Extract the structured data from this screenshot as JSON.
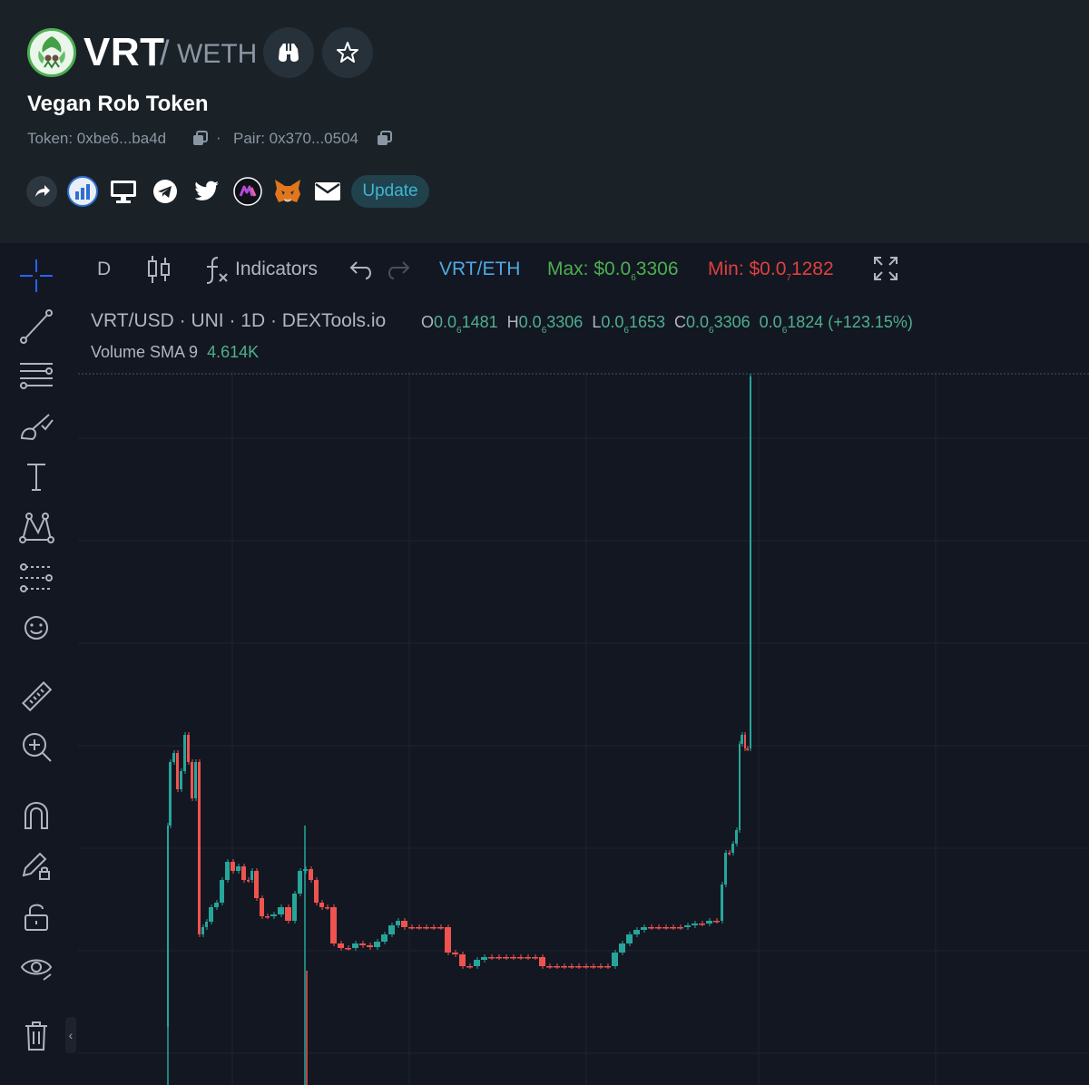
{
  "token": {
    "symbol": "VRT",
    "slash": "/",
    "quote": "WETH",
    "name": "Vegan Rob Token",
    "token_address": "Token: 0xbe6...ba4d",
    "separator": "·",
    "pair_address": "Pair: 0x370...0504",
    "update_label": "Update"
  },
  "header_icons": [
    "binoculars-icon",
    "star-icon"
  ],
  "social_icons": [
    "share-icon",
    "dextools-icon",
    "website-icon",
    "telegram-icon",
    "twitter-icon",
    "coinmarket-icon",
    "metamask-icon",
    "email-icon"
  ],
  "toolbar": {
    "interval": "D",
    "indicators": "Indicators",
    "pair": "VRT/ETH",
    "max_prefix": "Max: $0.0",
    "max_sub": "6",
    "max_rest": "3306",
    "min_prefix": "Min: $0.0",
    "min_sub": "7",
    "min_rest": "1282"
  },
  "legend": {
    "title": "VRT/USD · UNI · 1D · DEXTools.io",
    "o_label": "O",
    "o_pre": "0.0",
    "o_sub": "6",
    "o_rest": "1481",
    "h_label": "H",
    "h_pre": "0.0",
    "h_sub": "6",
    "h_rest": "3306",
    "l_label": "L",
    "l_pre": "0.0",
    "l_sub": "6",
    "l_rest": "1653",
    "c_label": "C",
    "c_pre": "0.0",
    "c_sub": "6",
    "c_rest": "3306",
    "chg_pre": "0.0",
    "chg_sub": "6",
    "chg_rest": "1824 (+123.15%)",
    "volume_label": "Volume SMA 9",
    "volume_value": "4.614K"
  },
  "colors": {
    "up": "#26a69a",
    "down": "#ef5350",
    "background": "#131722",
    "header": "#1a2127",
    "accent": "#2962ff"
  },
  "chart_data": {
    "type": "candlestick",
    "series": [
      {
        "name": "VRT/USD",
        "values": [
          [
            1.42,
            1.42,
            1.34,
            1.34
          ],
          [
            1.34,
            1.34,
            1.34,
            1.34
          ],
          [
            1.34,
            2.75,
            1.34,
            2.72
          ],
          [
            2.72,
            2.94,
            2.7,
            2.9
          ],
          [
            2.9,
            2.94,
            2.82,
            2.86
          ],
          [
            2.86,
            3.0,
            2.8,
            2.95
          ],
          [
            2.95,
            2.98,
            2.9,
            2.93
          ],
          [
            2.93,
            3.02,
            2.92,
            2.98
          ],
          [
            2.98,
            3.0,
            2.85,
            2.95
          ],
          [
            2.95,
            3.3,
            2.9,
            3.2
          ],
          [
            3.2,
            3.3,
            2.6,
            2.7
          ],
          [
            2.7,
            2.9,
            2.68,
            2.85
          ],
          [
            2.85,
            2.9,
            2.36,
            2.4
          ],
          [
            2.4,
            2.5,
            2.38,
            2.42
          ],
          [
            2.42,
            2.5,
            2.4,
            2.44
          ],
          [
            2.44,
            2.6,
            2.4,
            2.45
          ],
          [
            2.45,
            2.45,
            2.02,
            2.05
          ],
          [
            2.05,
            2.07,
            1.98,
            2.02
          ],
          [
            2.02,
            2.06,
            2.0,
            2.04
          ],
          [
            2.04,
            2.07,
            2.02,
            2.05
          ],
          [
            2.05,
            2.1,
            2.04,
            2.08
          ],
          [
            2.08,
            2.12,
            2.06,
            2.1
          ]
        ]
      }
    ]
  }
}
